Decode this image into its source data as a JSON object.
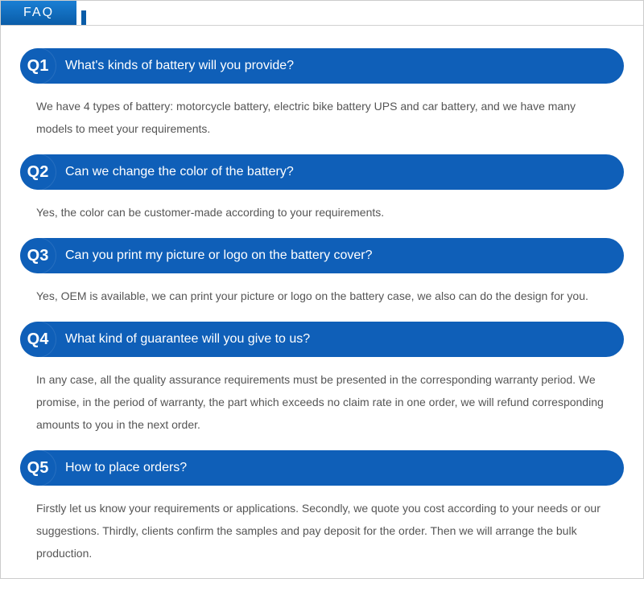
{
  "header": {
    "title": "FAQ"
  },
  "colors": {
    "bar_bg": "#0f5fb8",
    "tab_gradient_top": "#1a7fd4",
    "tab_gradient_bottom": "#0a5ca8",
    "answer_text": "#555555",
    "question_text": "#ffffff",
    "page_bg": "#ffffff"
  },
  "typography": {
    "question_fontsize": 16,
    "answer_fontsize": 14,
    "qnum_fontsize": 20
  },
  "faq": [
    {
      "num": "Q1",
      "question": "What's kinds of battery will you provide?",
      "answer": "We have 4 types of battery: motorcycle battery, electric bike battery UPS and car battery, and we have many models to meet your requirements."
    },
    {
      "num": "Q2",
      "question": "Can we change the color of the battery?",
      "answer": "Yes, the color can be customer-made according to your requirements."
    },
    {
      "num": "Q3",
      "question": "Can you print my picture or logo on the battery cover?",
      "answer": "Yes, OEM is available, we can print your picture or logo on the battery case, we also can do the design for you."
    },
    {
      "num": "Q4",
      "question": "What kind of guarantee will you give to us?",
      "answer": "In any case, all the quality assurance requirements must be presented in the corresponding warranty period. We promise, in the period of warranty, the part which exceeds no claim rate in one order, we will refund corresponding amounts to you in the next order."
    },
    {
      "num": "Q5",
      "question": "How to place orders?",
      "answer": "Firstly let us know your requirements or applications. Secondly, we quote you cost according to your needs or our suggestions. Thirdly, clients confirm the samples and pay deposit for the order. Then we will arrange the bulk production."
    }
  ]
}
